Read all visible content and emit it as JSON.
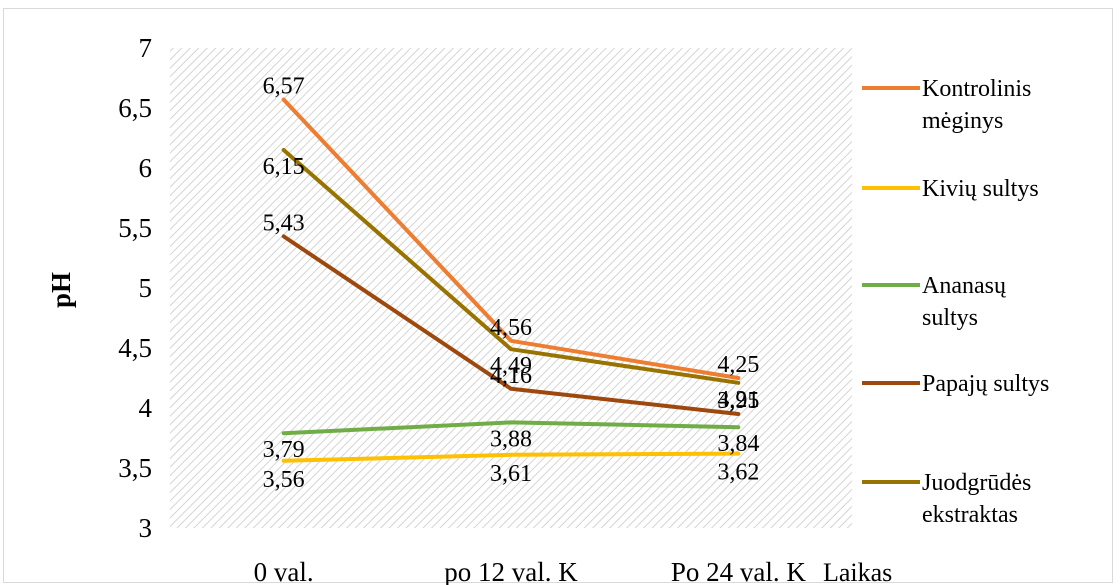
{
  "chart_data": {
    "type": "line",
    "categories": [
      "0 val.",
      "po 12 val. K",
      "Po 24 val. K"
    ],
    "series": [
      {
        "name": "Kontrolinis mėginys",
        "color": "#ED7D31",
        "values": [
          6.57,
          4.56,
          4.25
        ],
        "labels": [
          "6,57",
          "4,56",
          "4,25"
        ]
      },
      {
        "name": "Kivių sultys",
        "color": "#FFC000",
        "values": [
          3.56,
          3.61,
          3.62
        ],
        "labels": [
          "3,56",
          "3,61",
          "3,62"
        ]
      },
      {
        "name": "Ananasų sultys",
        "color": "#70AD47",
        "values": [
          3.79,
          3.88,
          3.84
        ],
        "labels": [
          "3,79",
          "3,88",
          "3,84"
        ]
      },
      {
        "name": "Papajų sultys",
        "color": "#9E480E",
        "values": [
          5.43,
          4.16,
          3.95
        ],
        "labels": [
          "5,43",
          "4,16",
          "3,95"
        ]
      },
      {
        "name": "Juodgrūdės ekstraktas",
        "color": "#997300",
        "values": [
          6.15,
          4.49,
          4.21
        ],
        "labels": [
          "6,15",
          "4,49",
          "4,21"
        ]
      }
    ],
    "ylabel": "pH",
    "xlabel": "Laikas",
    "ylim": [
      3,
      7
    ],
    "yticks": [
      "3",
      "3,5",
      "4",
      "4,5",
      "5",
      "5,5",
      "6",
      "6,5",
      "7"
    ],
    "legend_position": "right",
    "plot_background": "diagonal hatch"
  }
}
